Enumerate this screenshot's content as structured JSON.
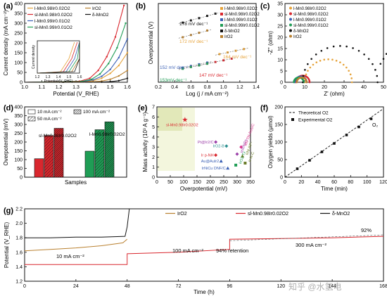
{
  "panels": {
    "a": "(a)",
    "b": "(b)",
    "c": "(c)",
    "d": "(d)",
    "e": "(e)",
    "f": "(f)",
    "g": "(g)"
  },
  "colors": {
    "l_Mn": "#e6a33a",
    "sl_Mn": "#d9272e",
    "ir_l": "#3a5fb4",
    "ir_sl": "#1f9d55",
    "ir_ref": "#b9802f",
    "delta": "#111111",
    "black": "#111111",
    "grey": "#555555",
    "violet": "#9b3fa8",
    "olive": "#6b7d2a",
    "teal": "#2a8f8f",
    "pink": "#d9318a"
  },
  "chart_data": [
    {
      "panel": "a",
      "type": "line",
      "xlabel": "Potential (V_RHE)",
      "ylabel": "Current density (mA cm⁻²)",
      "xlim": [
        1.0,
        1.6
      ],
      "ylim": [
        0,
        400
      ],
      "xticks": [
        "1.0",
        "1.1",
        "1.2",
        "1.3",
        "1.4",
        "1.5",
        "1.6"
      ],
      "yticks": [
        "0",
        "50",
        "100",
        "150",
        "200",
        "250",
        "300",
        "350",
        "400"
      ],
      "series": [
        {
          "name": "l-Mn0.98Ir0.02O2",
          "color": "l_Mn",
          "x": [
            1.0,
            1.35,
            1.4,
            1.45,
            1.5,
            1.55,
            1.6
          ],
          "y": [
            0,
            3,
            8,
            20,
            45,
            85,
            150
          ]
        },
        {
          "name": "sl-Mn0.98Ir0.02O2",
          "color": "sl_Mn",
          "x": [
            1.0,
            1.32,
            1.38,
            1.43,
            1.48,
            1.53,
            1.58
          ],
          "y": [
            0,
            5,
            20,
            60,
            130,
            230,
            390
          ]
        },
        {
          "name": "l-Mn0.99Ir0.01O2",
          "color": "ir_l",
          "x": [
            1.0,
            1.34,
            1.4,
            1.45,
            1.5,
            1.55,
            1.6
          ],
          "y": [
            0,
            4,
            12,
            30,
            65,
            125,
            220
          ]
        },
        {
          "name": "sl-Mn0.99Ir0.01O2",
          "color": "ir_sl",
          "x": [
            1.0,
            1.33,
            1.39,
            1.44,
            1.49,
            1.54,
            1.59
          ],
          "y": [
            0,
            4,
            15,
            42,
            95,
            175,
            300
          ]
        },
        {
          "name": "IrO2",
          "color": "ir_ref",
          "x": [
            1.0,
            1.4,
            1.45,
            1.5,
            1.55,
            1.6
          ],
          "y": [
            0,
            2,
            6,
            15,
            32,
            60
          ]
        },
        {
          "name": "δ-MnO2",
          "color": "delta",
          "x": [
            1.0,
            1.45,
            1.5,
            1.55,
            1.6
          ],
          "y": [
            0,
            1,
            3,
            8,
            20
          ]
        }
      ],
      "inset": {
        "xlabel": "Potential (V_RHE)",
        "ylabel": "Current density",
        "xticks": [
          "1.2",
          "1.3",
          "1.4",
          "1.5",
          "1.6"
        ]
      }
    },
    {
      "panel": "b",
      "type": "scatter",
      "xlabel": "Log (j / mA cm⁻²)",
      "ylabel": "Overpotential (V)",
      "xlim": [
        0.2,
        1.4
      ],
      "xticks": [
        "0.2",
        "0.4",
        "0.6",
        "0.8",
        "1.0",
        "1.2",
        "1.4"
      ],
      "series": [
        {
          "name": "l-Mn0.98Ir0.02O2",
          "color": "l_Mn",
          "x": [
            0.95,
            1.05,
            1.15,
            1.25
          ],
          "y": [
            0.25,
            0.265,
            0.28,
            0.295
          ]
        },
        {
          "name": "sl-Mn0.98Ir0.02O2",
          "color": "sl_Mn",
          "x": [
            0.7,
            0.8,
            0.9,
            1.0,
            1.1
          ],
          "y": [
            0.15,
            0.165,
            0.18,
            0.195,
            0.21
          ]
        },
        {
          "name": "l-Mn0.99Ir0.01O2",
          "color": "ir_l",
          "x": [
            0.5,
            0.6,
            0.7,
            0.8
          ],
          "y": [
            0.13,
            0.145,
            0.16,
            0.175
          ]
        },
        {
          "name": "sl-Mn0.99Ir0.01O2",
          "color": "ir_sl",
          "x": [
            0.5,
            0.6,
            0.7,
            0.8
          ],
          "y": [
            0.12,
            0.135,
            0.15,
            0.165
          ]
        },
        {
          "name": "δ-MnO2",
          "color": "delta",
          "x": [
            0.5,
            0.6,
            0.7,
            0.8,
            0.9
          ],
          "y": [
            0.53,
            0.55,
            0.57,
            0.59,
            0.61
          ]
        },
        {
          "name": "IrO2",
          "color": "ir_ref",
          "x": [
            0.5,
            0.6,
            0.7,
            0.8
          ],
          "y": [
            0.4,
            0.42,
            0.44,
            0.46
          ]
        }
      ],
      "annotations": [
        "178 mV dec⁻¹",
        "172 mV dec⁻¹",
        "164 mV dec⁻¹",
        "152 mV dec⁻¹",
        "153mV dec⁻¹",
        "147 mV dec⁻¹"
      ]
    },
    {
      "panel": "c",
      "type": "scatter",
      "xlabel": "Z' (ohm)",
      "ylabel": "-Z'' (ohm)",
      "xlim": [
        0,
        50
      ],
      "ylim": [
        0,
        35
      ],
      "xticks": [
        "0",
        "10",
        "20",
        "30",
        "40",
        "50"
      ],
      "yticks": [
        "0",
        "5",
        "10",
        "15",
        "20",
        "25",
        "30",
        "35"
      ],
      "series": [
        {
          "name": "l-Mn0.98Ir0.02O2",
          "color": "l_Mn",
          "center": 22,
          "radius": 12
        },
        {
          "name": "sl-Mn0.98Ir0.02O2",
          "color": "sl_Mn",
          "center": 9,
          "radius": 3.5
        },
        {
          "name": "l-Mn0.99Ir0.01O2",
          "color": "ir_l",
          "center": 8,
          "radius": 3
        },
        {
          "name": "sl-Mn0.99Ir0.01O2",
          "color": "ir_sl",
          "center": 7,
          "radius": 2.5
        },
        {
          "name": "δ-MnO2",
          "color": "delta",
          "center": 28,
          "radius": 19,
          "tail": true
        },
        {
          "name": "IrO2",
          "color": "ir_ref",
          "center": 8.5,
          "radius": 2.5
        }
      ]
    },
    {
      "panel": "d",
      "type": "bar",
      "xlabel": "Samples",
      "ylabel": "Overpotential (mV)",
      "ylim": [
        0,
        400
      ],
      "yticks": [
        "0",
        "50",
        "100",
        "150",
        "200",
        "250",
        "300",
        "350",
        "400"
      ],
      "legend": [
        "10 mA cm⁻²",
        "100 mA cm⁻²",
        "50 mA cm⁻²"
      ],
      "groups": [
        {
          "name": "sl-Mn0.98Ir0.02O2",
          "color": "sl_Mn",
          "values": [
            105,
            237,
            278
          ]
        },
        {
          "name": "l-Mn0.98Ir0.02O2",
          "color": "ir_sl",
          "values": [
            148,
            270,
            315
          ]
        }
      ]
    },
    {
      "panel": "e",
      "type": "scatter",
      "xlabel": "Overpotential (mV)",
      "ylabel": "Mass activity (10³ A g⁻¹)",
      "xlim": [
        0,
        350
      ],
      "ylim": [
        0,
        7
      ],
      "xticks": [
        "0",
        "50",
        "100",
        "150",
        "200",
        "250",
        "300",
        "350"
      ],
      "yticks": [
        "0",
        "1",
        "2",
        "3",
        "4",
        "5",
        "6",
        "7"
      ],
      "points": [
        {
          "label": "sl-Mn0.98Ir0.02O2",
          "x": 105,
          "y": 5.7,
          "color": "sl_Mn",
          "shape": "star"
        },
        {
          "label": "Pt@Ir2/C",
          "x": 220,
          "y": 3.5,
          "color": "violet",
          "shape": "diamond"
        },
        {
          "label": "IrO2-B",
          "x": 260,
          "y": 3.1,
          "color": "teal",
          "shape": "diamond"
        },
        {
          "label": "Ir p-NH",
          "x": 220,
          "y": 2.2,
          "color": "sl_Mn",
          "shape": "diamond"
        },
        {
          "label": "Au@AuIr2",
          "x": 240,
          "y": 1.6,
          "color": "ir_l",
          "shape": "triangle"
        },
        {
          "label": "IrNiCu DNF/C",
          "x": 265,
          "y": 0.9,
          "color": "ir_l",
          "shape": "triangle"
        },
        {
          "label": "IrO2-Tx",
          "x": 295,
          "y": 1.2,
          "color": "ir_sl",
          "shape": "square"
        },
        {
          "label": "IrW/NPs",
          "x": 300,
          "y": 2.3,
          "color": "violet",
          "shape": "diamond"
        },
        {
          "label": "IrNi-NP-",
          "x": 320,
          "y": 2.1,
          "color": "olive",
          "shape": "triangle"
        },
        {
          "label": "Ir-N-C",
          "x": 330,
          "y": 1.4,
          "color": "olive",
          "shape": "square"
        },
        {
          "label": "IrN-TN-free/C",
          "x": 315,
          "y": 3.0,
          "color": "pink",
          "shape": "diamond"
        }
      ]
    },
    {
      "panel": "f",
      "type": "line",
      "xlabel": "Time (min)",
      "ylabel": "Oxygen yields (μmol)",
      "xlim": [
        0,
        120
      ],
      "ylim": [
        0,
        200
      ],
      "xticks": [
        "0",
        "20",
        "40",
        "60",
        "80",
        "100",
        "120"
      ],
      "yticks": [
        "0",
        "50",
        "100",
        "150",
        "200"
      ],
      "series": [
        {
          "name": "Theoretical O2",
          "style": "dashed",
          "x": [
            0,
            120
          ],
          "y": [
            0,
            195
          ]
        },
        {
          "name": "Experimental O2",
          "style": "markers",
          "x": [
            15,
            30,
            45,
            60,
            75,
            90,
            105
          ],
          "y": [
            24,
            48,
            72,
            96,
            120,
            143,
            166
          ]
        }
      ],
      "annotations": [
        "O₂"
      ]
    },
    {
      "panel": "g",
      "type": "line",
      "xlabel": "Time (h)",
      "ylabel": "Potential (V_RHE)",
      "xlim": [
        0,
        168
      ],
      "ylim": [
        1.2,
        2.2
      ],
      "xticks": [
        "0",
        "24",
        "48",
        "72",
        "96",
        "120",
        "144",
        "168"
      ],
      "yticks": [
        "1.2",
        "1.4",
        "1.6",
        "1.8",
        "2.0",
        "2.2"
      ],
      "series": [
        {
          "name": "IrO2",
          "color": "ir_ref",
          "x": [
            0,
            12,
            24,
            36,
            46,
            48
          ],
          "y": [
            1.62,
            1.64,
            1.66,
            1.69,
            1.73,
            1.78
          ]
        },
        {
          "name": "sl-Mn0.98Ir0.02O2",
          "color": "sl_Mn",
          "x": [
            0,
            48,
            48,
            72,
            96,
            96,
            120,
            144,
            168
          ],
          "y": [
            1.43,
            1.43,
            1.58,
            1.6,
            1.64,
            1.78,
            1.79,
            1.8,
            1.82
          ]
        },
        {
          "name": "δ-MnO2",
          "color": "delta",
          "x": [
            0,
            12,
            24,
            36,
            47,
            48,
            49
          ],
          "y": [
            1.8,
            1.8,
            1.81,
            1.81,
            1.82,
            1.95,
            2.2
          ]
        }
      ],
      "annotations": [
        "10 mA cm⁻²",
        "100 mA cm⁻²",
        "94% retention",
        "300 mA cm⁻²",
        "92%"
      ]
    }
  ],
  "labels": {
    "a_leg": [
      "l-Mn",
      "0.98",
      "Ir",
      "0.02",
      "O",
      "2"
    ],
    "watermark": "知乎 @水氢电"
  }
}
